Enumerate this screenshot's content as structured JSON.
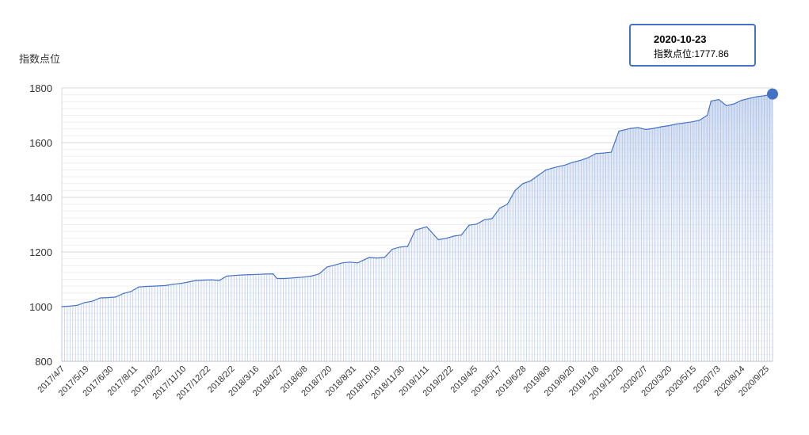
{
  "chart_data": {
    "type": "area",
    "ylabel": "指数点位",
    "ylim": [
      800,
      1800
    ],
    "yticks": [
      800,
      1000,
      1200,
      1400,
      1600,
      1800
    ],
    "xtick_labels": [
      "2017/4/7",
      "2017/5/19",
      "2017/6/30",
      "2017/8/11",
      "2017/9/22",
      "2017/11/10",
      "2017/12/22",
      "2018/2/2",
      "2018/3/16",
      "2018/4/27",
      "2018/6/8",
      "2018/7/20",
      "2018/8/31",
      "2018/10/19",
      "2018/11/30",
      "2019/1/11",
      "2019/2/22",
      "2019/4/5",
      "2019/5/17",
      "2019/6/28",
      "2019/8/9",
      "2019/9/20",
      "2019/11/8",
      "2019/12/20",
      "2020/2/7",
      "2020/3/20",
      "2020/5/15",
      "2020/7/3",
      "2020/8/14",
      "2020/9/25"
    ],
    "points": [
      [
        "2017-04-07",
        1000
      ],
      [
        "2017-04-21",
        1002
      ],
      [
        "2017-05-05",
        1005
      ],
      [
        "2017-05-19",
        1015
      ],
      [
        "2017-06-02",
        1020
      ],
      [
        "2017-06-16",
        1032
      ],
      [
        "2017-06-30",
        1033
      ],
      [
        "2017-07-14",
        1035
      ],
      [
        "2017-07-28",
        1048
      ],
      [
        "2017-08-11",
        1055
      ],
      [
        "2017-08-25",
        1072
      ],
      [
        "2017-09-08",
        1074
      ],
      [
        "2017-09-22",
        1075
      ],
      [
        "2017-10-13",
        1077
      ],
      [
        "2017-10-27",
        1082
      ],
      [
        "2017-11-10",
        1085
      ],
      [
        "2017-11-24",
        1090
      ],
      [
        "2017-12-08",
        1096
      ],
      [
        "2017-12-22",
        1097
      ],
      [
        "2018-01-05",
        1098
      ],
      [
        "2018-01-19",
        1096
      ],
      [
        "2018-02-02",
        1112
      ],
      [
        "2018-02-23",
        1115
      ],
      [
        "2018-03-02",
        1116
      ],
      [
        "2018-03-16",
        1117
      ],
      [
        "2018-03-30",
        1118
      ],
      [
        "2018-04-13",
        1119
      ],
      [
        "2018-04-27",
        1120
      ],
      [
        "2018-05-04",
        1103
      ],
      [
        "2018-05-18",
        1103
      ],
      [
        "2018-06-01",
        1105
      ],
      [
        "2018-06-08",
        1106
      ],
      [
        "2018-06-22",
        1108
      ],
      [
        "2018-07-06",
        1112
      ],
      [
        "2018-07-20",
        1120
      ],
      [
        "2018-08-03",
        1145
      ],
      [
        "2018-08-17",
        1152
      ],
      [
        "2018-08-31",
        1160
      ],
      [
        "2018-09-14",
        1163
      ],
      [
        "2018-09-28",
        1160
      ],
      [
        "2018-10-19",
        1180
      ],
      [
        "2018-11-02",
        1178
      ],
      [
        "2018-11-16",
        1180
      ],
      [
        "2018-11-30",
        1210
      ],
      [
        "2018-12-14",
        1218
      ],
      [
        "2018-12-28",
        1220
      ],
      [
        "2019-01-11",
        1280
      ],
      [
        "2019-01-25",
        1288
      ],
      [
        "2019-02-01",
        1292
      ],
      [
        "2019-02-22",
        1245
      ],
      [
        "2019-03-08",
        1250
      ],
      [
        "2019-03-22",
        1258
      ],
      [
        "2019-04-05",
        1262
      ],
      [
        "2019-04-19",
        1298
      ],
      [
        "2019-05-03",
        1302
      ],
      [
        "2019-05-17",
        1318
      ],
      [
        "2019-05-31",
        1322
      ],
      [
        "2019-06-14",
        1360
      ],
      [
        "2019-06-28",
        1375
      ],
      [
        "2019-07-12",
        1425
      ],
      [
        "2019-07-26",
        1450
      ],
      [
        "2019-08-09",
        1460
      ],
      [
        "2019-08-23",
        1480
      ],
      [
        "2019-09-06",
        1500
      ],
      [
        "2019-09-20",
        1508
      ],
      [
        "2019-10-11",
        1518
      ],
      [
        "2019-10-25",
        1528
      ],
      [
        "2019-11-08",
        1535
      ],
      [
        "2019-11-22",
        1545
      ],
      [
        "2019-12-06",
        1560
      ],
      [
        "2019-12-20",
        1562
      ],
      [
        "2020-01-03",
        1565
      ],
      [
        "2020-01-17",
        1642
      ],
      [
        "2020-02-07",
        1652
      ],
      [
        "2020-02-21",
        1655
      ],
      [
        "2020-03-06",
        1648
      ],
      [
        "2020-03-20",
        1652
      ],
      [
        "2020-04-03",
        1658
      ],
      [
        "2020-04-17",
        1662
      ],
      [
        "2020-05-01",
        1668
      ],
      [
        "2020-05-15",
        1672
      ],
      [
        "2020-05-29",
        1676
      ],
      [
        "2020-06-12",
        1682
      ],
      [
        "2020-06-26",
        1700
      ],
      [
        "2020-07-03",
        1752
      ],
      [
        "2020-07-17",
        1758
      ],
      [
        "2020-07-31",
        1735
      ],
      [
        "2020-08-14",
        1742
      ],
      [
        "2020-08-28",
        1755
      ],
      [
        "2020-09-11",
        1762
      ],
      [
        "2020-09-25",
        1768
      ],
      [
        "2020-10-09",
        1772
      ],
      [
        "2020-10-23",
        1777.86
      ]
    ],
    "highlight": {
      "date": "2020-10-23",
      "value": 1777.86
    },
    "grid": true,
    "colors": {
      "line": "#4472c4",
      "fill_top": "#c9d6ee",
      "grid": "#e6e6e6",
      "marker": "#4472c4"
    }
  },
  "tooltip": {
    "date": "2020-10-23",
    "label": "指数点位",
    "value": "1777.86"
  }
}
